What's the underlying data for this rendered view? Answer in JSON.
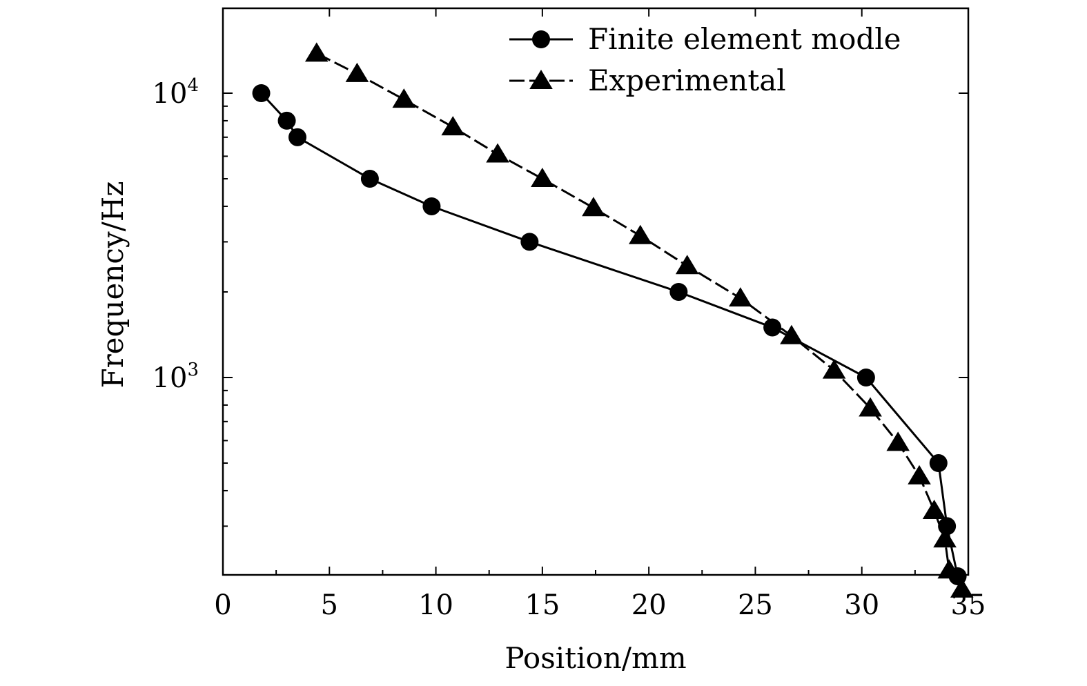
{
  "chart_data": {
    "type": "line",
    "title": "",
    "xlabel": "Position/mm",
    "ylabel": "Frequency/Hz",
    "xlim": [
      0,
      35
    ],
    "ylim": [
      200,
      20000
    ],
    "yscale": "log",
    "grid": false,
    "legend_position": "top-right",
    "x_ticks": [
      0,
      5,
      10,
      15,
      20,
      25,
      30,
      35
    ],
    "x_tick_labels": [
      "0",
      "5",
      "10",
      "15",
      "20",
      "25",
      "30",
      "35"
    ],
    "y_ticks": [
      {
        "value": 1000,
        "base": "10",
        "exp": "3"
      },
      {
        "value": 10000,
        "base": "10",
        "exp": "4"
      }
    ],
    "series": [
      {
        "name": "Finite element modle",
        "marker": "circle",
        "line": "solid",
        "color": "#000000",
        "x": [
          1.8,
          3.0,
          3.5,
          6.9,
          9.8,
          14.4,
          21.4,
          25.8,
          30.2,
          33.6,
          34.0,
          34.5
        ],
        "y": [
          10000,
          8000,
          7000,
          5000,
          4000,
          3000,
          2000,
          1500,
          1000,
          500,
          300,
          200
        ]
      },
      {
        "name": "Experimental",
        "marker": "triangle",
        "line": "dashed",
        "color": "#000000",
        "x": [
          4.4,
          6.3,
          8.5,
          10.8,
          12.9,
          15.0,
          17.4,
          19.6,
          21.8,
          24.3,
          26.7,
          28.7,
          30.4,
          31.7,
          32.7,
          33.4,
          33.9,
          34.1,
          34.7
        ],
        "y": [
          13800,
          11700,
          9500,
          7600,
          6100,
          5000,
          3950,
          3150,
          2470,
          1900,
          1400,
          1060,
          780,
          590,
          450,
          340,
          270,
          210,
          180
        ]
      }
    ]
  }
}
